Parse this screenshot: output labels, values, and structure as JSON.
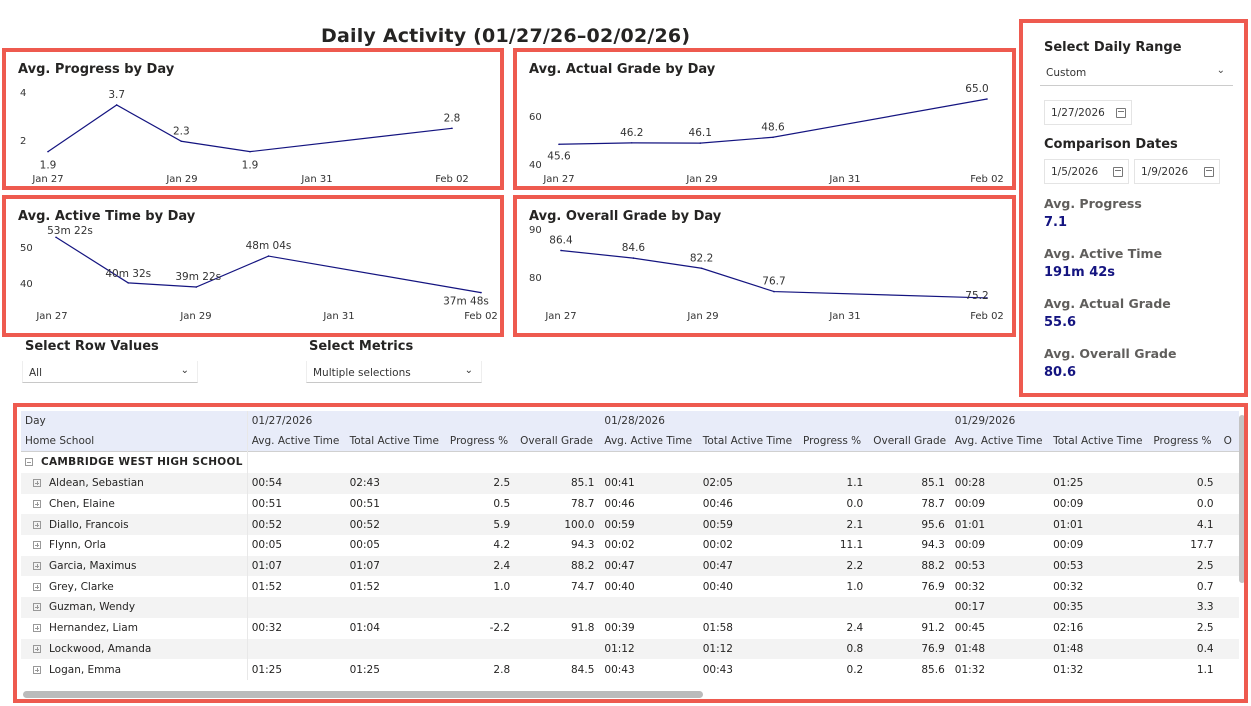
{
  "page": {
    "title": "Daily Activity (01/27/26–02/02/26)"
  },
  "colors": {
    "highlight_border": "#ee5a4f",
    "line": "#141480",
    "kpi_value": "#141480",
    "table_header_bg": "#e8ecf9"
  },
  "charts": {
    "progress": {
      "title": "Avg. Progress by Day"
    },
    "actual": {
      "title": "Avg. Actual Grade by Day"
    },
    "active": {
      "title": "Avg. Active Time by Day"
    },
    "overall": {
      "title": "Avg. Overall Grade by Day"
    }
  },
  "chart_data": [
    {
      "id": "progress",
      "type": "line",
      "title": "Avg. Progress by Day",
      "x": [
        "Jan 27",
        "Jan 28",
        "Jan 29",
        "Jan 30",
        "Feb 02"
      ],
      "x_tick_labels": [
        "Jan 27",
        "Jan 29",
        "Jan 31",
        "Feb 02"
      ],
      "values": [
        1.9,
        3.7,
        2.3,
        1.9,
        2.8
      ],
      "data_labels": [
        "1.9",
        "3.7",
        "2.3",
        "1.9",
        "2.8"
      ],
      "y_ticks": [
        "4",
        "2"
      ],
      "ylim": [
        1.5,
        4.2
      ]
    },
    {
      "id": "actual",
      "type": "line",
      "title": "Avg. Actual Grade by Day",
      "x": [
        "Jan 27",
        "Jan 28",
        "Jan 29",
        "Jan 30",
        "Feb 02"
      ],
      "x_tick_labels": [
        "Jan 27",
        "Jan 29",
        "Jan 31",
        "Feb 02"
      ],
      "values": [
        45.6,
        46.2,
        46.1,
        48.6,
        65.0
      ],
      "data_labels": [
        "45.6",
        "46.2",
        "46.1",
        "48.6",
        "65.0"
      ],
      "y_ticks": [
        "60",
        "40"
      ],
      "ylim": [
        38,
        68
      ]
    },
    {
      "id": "active",
      "type": "line",
      "title": "Avg. Active Time by Day",
      "x": [
        "Jan 27",
        "Jan 28",
        "Jan 29",
        "Jan 30",
        "Feb 02"
      ],
      "x_tick_labels": [
        "Jan 27",
        "Jan 29",
        "Jan 31",
        "Feb 02"
      ],
      "values": [
        53.37,
        40.53,
        39.37,
        48.07,
        37.8
      ],
      "data_labels": [
        "53m 22s",
        "40m 32s",
        "39m 22s",
        "48m 04s",
        "37m 48s"
      ],
      "y_ticks": [
        "50",
        "40"
      ],
      "ylim": [
        36,
        54
      ]
    },
    {
      "id": "overall",
      "type": "line",
      "title": "Avg. Overall Grade by Day",
      "x": [
        "Jan 27",
        "Jan 28",
        "Jan 29",
        "Jan 30",
        "Feb 02"
      ],
      "x_tick_labels": [
        "Jan 27",
        "Jan 29",
        "Jan 31",
        "Feb 02"
      ],
      "values": [
        86.4,
        84.6,
        82.2,
        76.7,
        75.2
      ],
      "data_labels": [
        "86.4",
        "84.6",
        "82.2",
        "76.7",
        "75.2"
      ],
      "y_ticks": [
        "90",
        "80"
      ],
      "ylim": [
        74,
        91
      ]
    }
  ],
  "sidebar": {
    "range_heading": "Select Daily Range",
    "range_value": "Custom",
    "start_date": "1/27/2026",
    "comparison_heading": "Comparison Dates",
    "comp_start": "1/5/2026",
    "comp_end": "1/9/2026",
    "kpis": [
      {
        "label": "Avg. Progress",
        "value": "7.1"
      },
      {
        "label": "Avg. Active Time",
        "value": "191m 42s"
      },
      {
        "label": "Avg. Actual Grade",
        "value": "55.6"
      },
      {
        "label": "Avg. Overall Grade",
        "value": "80.6"
      }
    ]
  },
  "slicers": {
    "rows": {
      "label": "Select Row Values",
      "value": "All"
    },
    "metrics": {
      "label": "Select Metrics",
      "value": "Multiple selections"
    }
  },
  "table": {
    "row_header_1": "Day",
    "row_header_2": "Home School",
    "dates": [
      "01/27/2026",
      "01/28/2026",
      "01/29/2026"
    ],
    "metric_headers": [
      "Avg. Active Time",
      "Total Active Time",
      "Progress %",
      "Overall Grade"
    ],
    "truncated_header": "O",
    "group": "CAMBRIDGE WEST HIGH SCHOOL",
    "rows": [
      {
        "name": "Aldean, Sebastian",
        "cells": [
          "00:54",
          "02:43",
          "2.5",
          "85.1",
          "00:41",
          "02:05",
          "1.1",
          "85.1",
          "00:28",
          "01:25",
          "0.5"
        ]
      },
      {
        "name": "Chen, Elaine",
        "cells": [
          "00:51",
          "00:51",
          "0.5",
          "78.7",
          "00:46",
          "00:46",
          "0.0",
          "78.7",
          "00:09",
          "00:09",
          "0.0"
        ]
      },
      {
        "name": "Diallo, Francois",
        "cells": [
          "00:52",
          "00:52",
          "5.9",
          "100.0",
          "00:59",
          "00:59",
          "2.1",
          "95.6",
          "01:01",
          "01:01",
          "4.1"
        ]
      },
      {
        "name": "Flynn, Orla",
        "cells": [
          "00:05",
          "00:05",
          "4.2",
          "94.3",
          "00:02",
          "00:02",
          "11.1",
          "94.3",
          "00:09",
          "00:09",
          "17.7"
        ]
      },
      {
        "name": "Garcia, Maximus",
        "cells": [
          "01:07",
          "01:07",
          "2.4",
          "88.2",
          "00:47",
          "00:47",
          "2.2",
          "88.2",
          "00:53",
          "00:53",
          "2.5"
        ]
      },
      {
        "name": "Grey, Clarke",
        "cells": [
          "01:52",
          "01:52",
          "1.0",
          "74.7",
          "00:40",
          "00:40",
          "1.0",
          "76.9",
          "00:32",
          "00:32",
          "0.7"
        ]
      },
      {
        "name": "Guzman, Wendy",
        "cells": [
          "",
          "",
          "",
          "",
          "",
          "",
          "",
          "",
          "00:17",
          "00:35",
          "3.3"
        ]
      },
      {
        "name": "Hernandez, Liam",
        "cells": [
          "00:32",
          "01:04",
          "-2.2",
          "91.8",
          "00:39",
          "01:58",
          "2.4",
          "91.2",
          "00:45",
          "02:16",
          "2.5"
        ]
      },
      {
        "name": "Lockwood, Amanda",
        "cells": [
          "",
          "",
          "",
          "",
          "01:12",
          "01:12",
          "0.8",
          "76.9",
          "01:48",
          "01:48",
          "0.4"
        ]
      },
      {
        "name": "Logan, Emma",
        "cells": [
          "01:25",
          "01:25",
          "2.8",
          "84.5",
          "00:43",
          "00:43",
          "0.2",
          "85.6",
          "01:32",
          "01:32",
          "1.1"
        ]
      }
    ]
  }
}
